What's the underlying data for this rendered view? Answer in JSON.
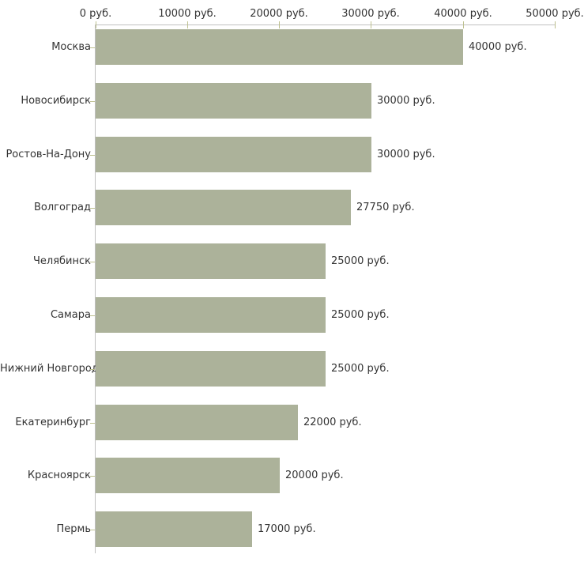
{
  "chart_data": {
    "type": "bar",
    "orientation": "horizontal",
    "title": "",
    "xlabel": "",
    "ylabel": "",
    "grid": false,
    "legend": null,
    "categories": [
      "Москва",
      "Новосибирск",
      "Ростов-На-Дону",
      "Волгоград",
      "Челябинск",
      "Самара",
      "Нижний Новгород",
      "Екатеринбург",
      "Красноярск",
      "Пермь"
    ],
    "values": [
      40000,
      30000,
      30000,
      27750,
      25000,
      25000,
      25000,
      22000,
      20000,
      17000
    ],
    "value_labels": [
      "40000 руб.",
      "30000 руб.",
      "30000 руб.",
      "27750 руб.",
      "25000 руб.",
      "25000 руб.",
      "25000 руб.",
      "22000 руб.",
      "20000 руб.",
      "17000 руб."
    ],
    "xlim": [
      0,
      50000
    ],
    "x_ticks": [
      0,
      10000,
      20000,
      30000,
      40000,
      50000
    ],
    "x_tick_labels": [
      "0 руб.",
      "10000 руб.",
      "20000 руб.",
      "30000 руб.",
      "40000 руб.",
      "50000 руб."
    ],
    "unit": "руб.",
    "colors": {
      "bar": "#acb29a",
      "axis_line": "#c0c0c0",
      "tick_mark": "#bdc08f",
      "text": "#333333",
      "background": "#ffffff"
    }
  }
}
